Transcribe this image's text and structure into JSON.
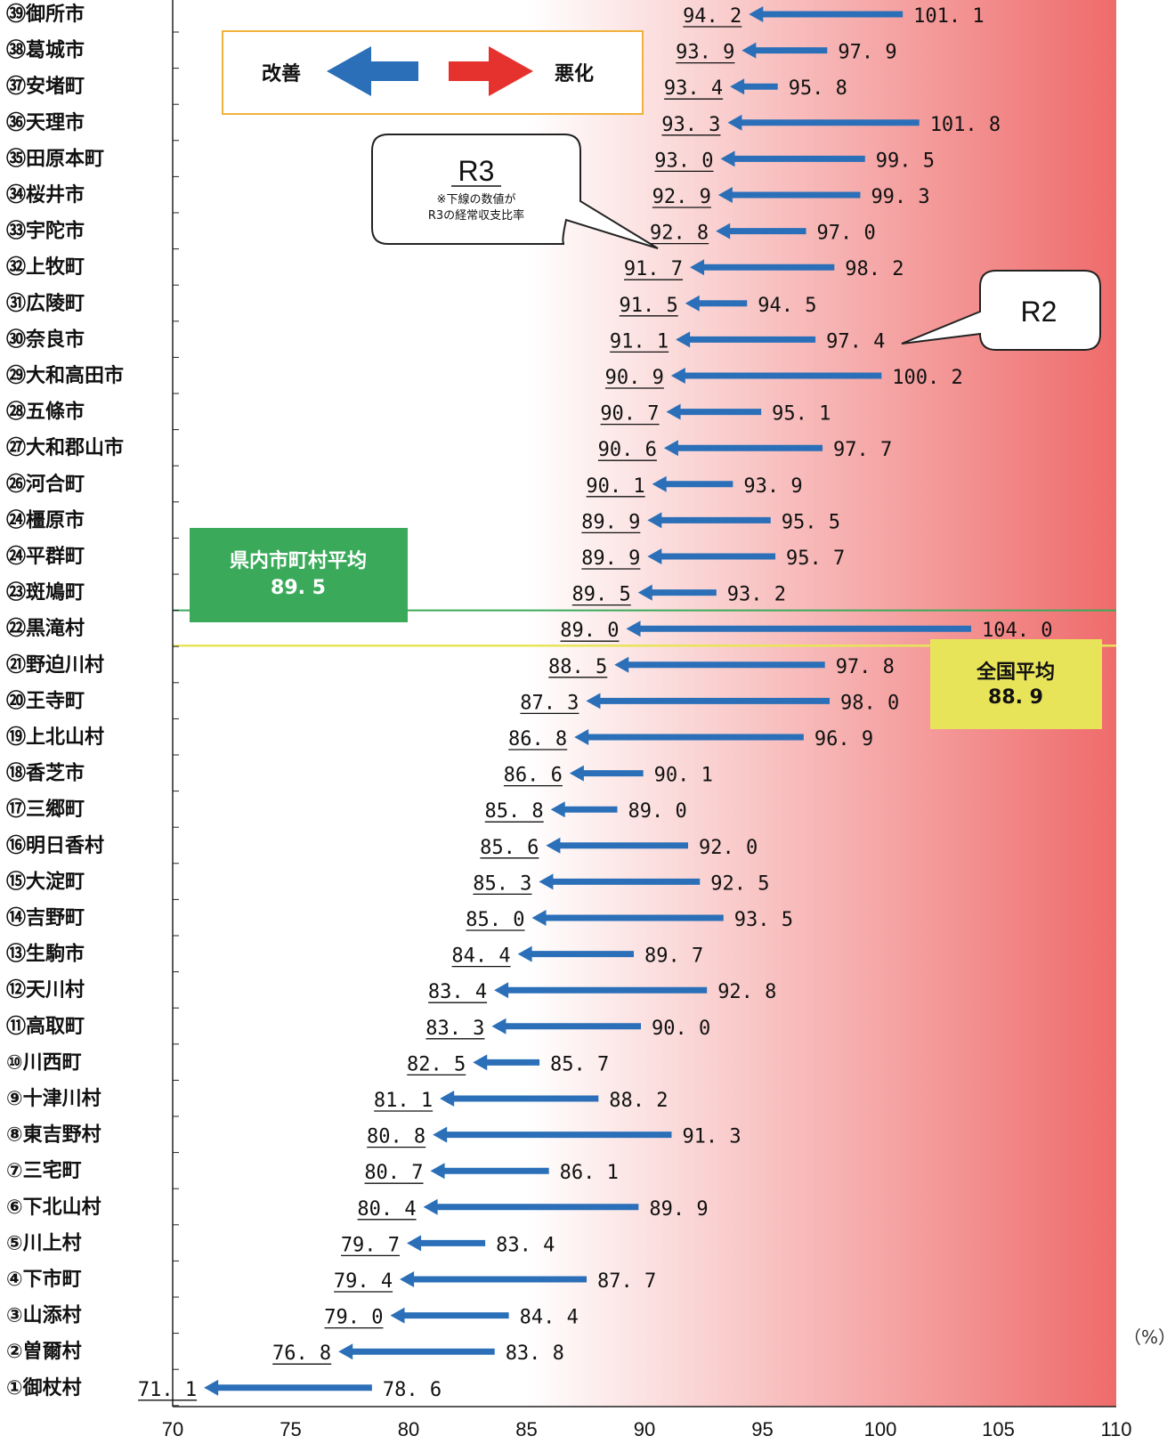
{
  "chart_data": {
    "type": "bar",
    "title": "",
    "xlabel": "",
    "ylabel": "",
    "unit": "（%）",
    "xlim": [
      70,
      110
    ],
    "xticks": [
      "70",
      "75",
      "80",
      "85",
      "90",
      "95",
      "100",
      "105",
      "110"
    ],
    "rows": [
      {
        "label": "㊴御所市",
        "r3": "94.2",
        "r2": "101.1"
      },
      {
        "label": "㊳葛城市",
        "r3": "93.9",
        "r2": "97.9"
      },
      {
        "label": "㊲安堵町",
        "r3": "93.4",
        "r2": "95.8"
      },
      {
        "label": "㊱天理市",
        "r3": "93.3",
        "r2": "101.8"
      },
      {
        "label": "㉟田原本町",
        "r3": "93.0",
        "r2": "99.5"
      },
      {
        "label": "㉞桜井市",
        "r3": "92.9",
        "r2": "99.3"
      },
      {
        "label": "㉝宇陀市",
        "r3": "92.8",
        "r2": "97.0"
      },
      {
        "label": "㉜上牧町",
        "r3": "91.7",
        "r2": "98.2"
      },
      {
        "label": "㉛広陵町",
        "r3": "91.5",
        "r2": "94.5"
      },
      {
        "label": "㉚奈良市",
        "r3": "91.1",
        "r2": "97.4"
      },
      {
        "label": "㉙大和高田市",
        "r3": "90.9",
        "r2": "100.2"
      },
      {
        "label": "㉘五條市",
        "r3": "90.7",
        "r2": "95.1"
      },
      {
        "label": "㉗大和郡山市",
        "r3": "90.6",
        "r2": "97.7"
      },
      {
        "label": "㉖河合町",
        "r3": "90.1",
        "r2": "93.9"
      },
      {
        "label": "㉔橿原市",
        "r3": "89.9",
        "r2": "95.5"
      },
      {
        "label": "㉔平群町",
        "r3": "89.9",
        "r2": "95.7"
      },
      {
        "label": "㉓斑鳩町",
        "r3": "89.5",
        "r2": "93.2"
      },
      {
        "label": "㉒黒滝村",
        "r3": "89.0",
        "r2": "104.0"
      },
      {
        "label": "㉑野迫川村",
        "r3": "88.5",
        "r2": "97.8"
      },
      {
        "label": "⑳王寺町",
        "r3": "87.3",
        "r2": "98.0"
      },
      {
        "label": "⑲上北山村",
        "r3": "86.8",
        "r2": "96.9"
      },
      {
        "label": "⑱香芝市",
        "r3": "86.6",
        "r2": "90.1"
      },
      {
        "label": "⑰三郷町",
        "r3": "85.8",
        "r2": "89.0"
      },
      {
        "label": "⑯明日香村",
        "r3": "85.6",
        "r2": "92.0"
      },
      {
        "label": "⑮大淀町",
        "r3": "85.3",
        "r2": "92.5"
      },
      {
        "label": "⑭吉野町",
        "r3": "85.0",
        "r2": "93.5"
      },
      {
        "label": "⑬生駒市",
        "r3": "84.4",
        "r2": "89.7"
      },
      {
        "label": "⑫天川村",
        "r3": "83.4",
        "r2": "92.8"
      },
      {
        "label": "⑪高取町",
        "r3": "83.3",
        "r2": "90.0"
      },
      {
        "label": "⑩川西町",
        "r3": "82.5",
        "r2": "85.7"
      },
      {
        "label": "⑨十津川村",
        "r3": "81.1",
        "r2": "88.2"
      },
      {
        "label": "⑧東吉野村",
        "r3": "80.8",
        "r2": "91.3"
      },
      {
        "label": "⑦三宅町",
        "r3": "80.7",
        "r2": "86.1"
      },
      {
        "label": "⑥下北山村",
        "r3": "80.4",
        "r2": "89.9"
      },
      {
        "label": "⑤川上村",
        "r3": "79.7",
        "r2": "83.4"
      },
      {
        "label": "④下市町",
        "r3": "79.4",
        "r2": "87.7"
      },
      {
        "label": "③山添村",
        "r3": "79.0",
        "r2": "84.4"
      },
      {
        "label": "②曽爾村",
        "r3": "76.8",
        "r2": "83.8"
      },
      {
        "label": "①御杖村",
        "r3": "71.1",
        "r2": "78.6"
      }
    ],
    "reference_lines": [
      {
        "name": "県内市町村平均",
        "value": "89.5",
        "color": "#3aaa5a"
      },
      {
        "name": "全国平均",
        "value": "88.9",
        "color": "#e8e45a"
      }
    ]
  },
  "legend": {
    "improve": "改善",
    "worsen": "悪化"
  },
  "callouts": {
    "r3_title": "R3",
    "r3_note_1": "※下線の数値が",
    "r3_note_2": "R3の経常収支比率",
    "r2_title": "R2"
  },
  "pref_avg_box": {
    "label": "県内市町村平均",
    "value": "89. 5"
  },
  "national_avg_box": {
    "label": "全国平均",
    "value": "88. 9"
  },
  "colors": {
    "arrow_blue": "#2a6fb8",
    "arrow_red": "#e6322e",
    "gradient_end": "#ef6b6b",
    "pref_avg": "#3aaa5a",
    "national_avg": "#e8e45a",
    "legend_border": "#f0b23c"
  }
}
